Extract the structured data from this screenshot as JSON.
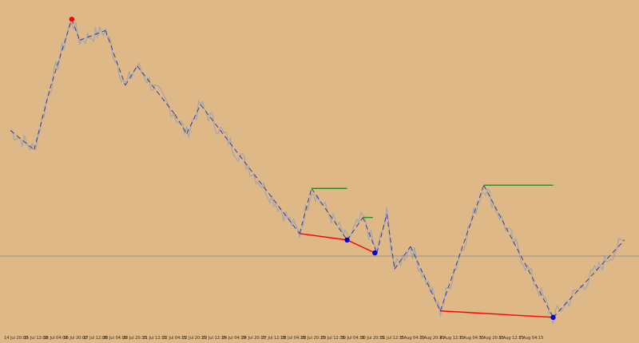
{
  "chart_data": {
    "type": "line",
    "title": "",
    "xlabel": "",
    "ylabel": "",
    "background": "#deb887",
    "colors": {
      "price": "#a6a9a8",
      "zigzag": "#3a3aa0",
      "resistance": "#2e8b20",
      "support": "#ff0000",
      "marker_low": "#0000cc",
      "marker_high": "#ff0000",
      "hline": "#8a8f96"
    },
    "x_categories": [
      "14 Jul 20:00",
      "15 Jul 12:00",
      "16 Jul 04:00",
      "16 Jul 20:00",
      "17 Jul 12:00",
      "20 Jul 04:00",
      "20 Jul 20:15",
      "21 Jul 12:15",
      "22 Jul 04:15",
      "22 Jul 20:15",
      "23 Jul 12:15",
      "24 Jul 04:15",
      "24 Jul 20:15",
      "27 Jul 12:15",
      "28 Jul 04:15",
      "28 Jul 20:15",
      "29 Jul 12:15",
      "30 Jul 04:15",
      "30 Jul 20:15",
      "31 Jul 12:15",
      "3 Aug 04:15",
      "3 Aug 20:15",
      "4 Aug 12:15",
      "5 Aug 04:15",
      "5 Aug 20:15",
      "6 Aug 12:15",
      "7 Aug 04:15"
    ],
    "y_range": [
      0,
      100
    ],
    "zigzag_points": [
      {
        "x": 0,
        "y": 62
      },
      {
        "x": 1.2,
        "y": 56
      },
      {
        "x": 2.0,
        "y": 75
      },
      {
        "x": 3.1,
        "y": 96.5
      },
      {
        "x": 3.5,
        "y": 90
      },
      {
        "x": 4.8,
        "y": 93
      },
      {
        "x": 5.8,
        "y": 76
      },
      {
        "x": 6.4,
        "y": 82
      },
      {
        "x": 8.3,
        "y": 67
      },
      {
        "x": 8.9,
        "y": 61
      },
      {
        "x": 9.6,
        "y": 70
      },
      {
        "x": 14.6,
        "y": 30
      },
      {
        "x": 15.2,
        "y": 44
      },
      {
        "x": 17.0,
        "y": 28
      },
      {
        "x": 17.8,
        "y": 35
      },
      {
        "x": 18.5,
        "y": 24
      },
      {
        "x": 19.0,
        "y": 36
      },
      {
        "x": 19.4,
        "y": 19
      },
      {
        "x": 20.2,
        "y": 26
      },
      {
        "x": 21.7,
        "y": 6
      },
      {
        "x": 23.9,
        "y": 45
      },
      {
        "x": 27.4,
        "y": 4
      },
      {
        "x": 31,
        "y": 28
      }
    ],
    "resistance_lines": [
      {
        "x1": 15.2,
        "x2": 17.0,
        "y": 44
      },
      {
        "x1": 17.8,
        "x2": 18.3,
        "y": 35
      },
      {
        "x1": 23.9,
        "x2": 27.4,
        "y": 45
      }
    ],
    "support_lines": [
      {
        "x1": 14.6,
        "x2": 17.0,
        "y1": 30,
        "y2": 28
      },
      {
        "x1": 17.0,
        "x2": 18.4,
        "y1": 28,
        "y2": 24
      },
      {
        "x1": 21.7,
        "x2": 27.4,
        "y1": 6,
        "y2": 4
      }
    ],
    "markers": [
      {
        "x": 3.1,
        "y": 96.5,
        "type": "high"
      },
      {
        "x": 17.0,
        "y": 28,
        "type": "low"
      },
      {
        "x": 18.4,
        "y": 24,
        "type": "low"
      },
      {
        "x": 27.4,
        "y": 4,
        "type": "low"
      }
    ],
    "hline_y": 23,
    "grid": false,
    "legend": "none"
  }
}
